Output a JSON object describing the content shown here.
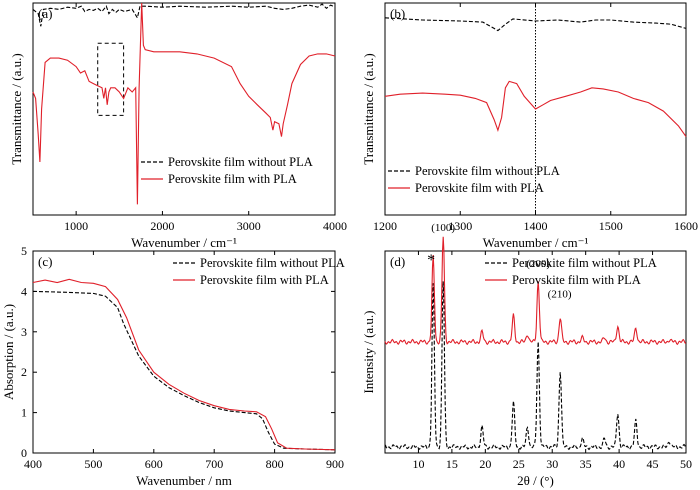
{
  "chart_data": [
    {
      "panel": "(a)",
      "type": "line",
      "xlabel": "Wavenumber / cm⁻¹",
      "ylabel": "Transmittance / (a.u.)",
      "xlim": [
        500,
        4000
      ],
      "ylim": [
        0,
        1
      ],
      "xticks": [
        "1000",
        "2000",
        "3000",
        "4000"
      ],
      "yticks": [],
      "legend_position": "bottom-right",
      "annotation": "dashed-box 1250–1550",
      "series": [
        {
          "name": "Perovskite film without PLA",
          "style": "dashed",
          "color": "#000000",
          "points": [
            [
              500,
              0.97
            ],
            [
              560,
              0.95
            ],
            [
              590,
              0.89
            ],
            [
              620,
              0.97
            ],
            [
              700,
              0.975
            ],
            [
              800,
              0.97
            ],
            [
              900,
              0.98
            ],
            [
              1000,
              0.975
            ],
            [
              1060,
              0.985
            ],
            [
              1100,
              0.96
            ],
            [
              1150,
              0.97
            ],
            [
              1200,
              0.965
            ],
            [
              1250,
              0.975
            ],
            [
              1300,
              0.96
            ],
            [
              1350,
              0.985
            ],
            [
              1380,
              0.95
            ],
            [
              1420,
              0.97
            ],
            [
              1460,
              0.955
            ],
            [
              1500,
              0.97
            ],
            [
              1560,
              0.96
            ],
            [
              1650,
              0.97
            ],
            [
              1710,
              0.93
            ],
            [
              1740,
              0.985
            ],
            [
              1800,
              0.985
            ],
            [
              2000,
              0.98
            ],
            [
              2200,
              0.985
            ],
            [
              2500,
              0.98
            ],
            [
              2800,
              0.985
            ],
            [
              3000,
              0.98
            ],
            [
              3200,
              0.985
            ],
            [
              3300,
              0.975
            ],
            [
              3400,
              0.97
            ],
            [
              3500,
              0.975
            ],
            [
              3600,
              0.985
            ],
            [
              3700,
              0.99
            ],
            [
              3800,
              0.98
            ],
            [
              3850,
              0.995
            ],
            [
              3900,
              0.975
            ],
            [
              3950,
              0.99
            ],
            [
              4000,
              0.98
            ]
          ]
        },
        {
          "name": "Perovskite film with PLA",
          "style": "solid",
          "color": "#e0202a",
          "points": [
            [
              500,
              0.58
            ],
            [
              530,
              0.55
            ],
            [
              560,
              0.38
            ],
            [
              580,
              0.25
            ],
            [
              600,
              0.5
            ],
            [
              640,
              0.72
            ],
            [
              700,
              0.74
            ],
            [
              800,
              0.74
            ],
            [
              900,
              0.73
            ],
            [
              1000,
              0.7
            ],
            [
              1050,
              0.67
            ],
            [
              1100,
              0.68
            ],
            [
              1150,
              0.63
            ],
            [
              1200,
              0.62
            ],
            [
              1250,
              0.61
            ],
            [
              1300,
              0.6
            ],
            [
              1320,
              0.55
            ],
            [
              1340,
              0.6
            ],
            [
              1360,
              0.52
            ],
            [
              1380,
              0.58
            ],
            [
              1400,
              0.6
            ],
            [
              1450,
              0.6
            ],
            [
              1500,
              0.58
            ],
            [
              1550,
              0.55
            ],
            [
              1600,
              0.6
            ],
            [
              1650,
              0.58
            ],
            [
              1690,
              0.6
            ],
            [
              1710,
              0.05
            ],
            [
              1730,
              0.6
            ],
            [
              1760,
              1.0
            ],
            [
              1780,
              0.8
            ],
            [
              1800,
              0.78
            ],
            [
              1900,
              0.77
            ],
            [
              2000,
              0.77
            ],
            [
              2200,
              0.77
            ],
            [
              2400,
              0.76
            ],
            [
              2600,
              0.74
            ],
            [
              2800,
              0.7
            ],
            [
              2900,
              0.62
            ],
            [
              3000,
              0.56
            ],
            [
              3100,
              0.52
            ],
            [
              3200,
              0.48
            ],
            [
              3250,
              0.46
            ],
            [
              3280,
              0.4
            ],
            [
              3300,
              0.44
            ],
            [
              3350,
              0.43
            ],
            [
              3380,
              0.37
            ],
            [
              3400,
              0.43
            ],
            [
              3450,
              0.52
            ],
            [
              3500,
              0.62
            ],
            [
              3600,
              0.71
            ],
            [
              3700,
              0.75
            ],
            [
              3800,
              0.76
            ],
            [
              3900,
              0.76
            ],
            [
              4000,
              0.75
            ]
          ]
        }
      ]
    },
    {
      "panel": "(b)",
      "type": "line",
      "xlabel": "Wavenumber / cm⁻¹",
      "ylabel": "Transmittance / (a.u.)",
      "xlim": [
        1200,
        1600
      ],
      "ylim": [
        0,
        1
      ],
      "xticks": [
        "1200",
        "1300",
        "1400",
        "1500",
        "1600"
      ],
      "yticks": [],
      "legend_position": "bottom-left",
      "vline_x": 1400,
      "series": [
        {
          "name": "Perovskite film without PLA",
          "style": "dashed",
          "color": "#000000",
          "points": [
            [
              1200,
              0.93
            ],
            [
              1250,
              0.92
            ],
            [
              1300,
              0.915
            ],
            [
              1330,
              0.91
            ],
            [
              1345,
              0.88
            ],
            [
              1350,
              0.87
            ],
            [
              1360,
              0.9
            ],
            [
              1370,
              0.925
            ],
            [
              1400,
              0.915
            ],
            [
              1430,
              0.92
            ],
            [
              1460,
              0.91
            ],
            [
              1480,
              0.92
            ],
            [
              1500,
              0.92
            ],
            [
              1530,
              0.91
            ],
            [
              1560,
              0.905
            ],
            [
              1580,
              0.9
            ],
            [
              1600,
              0.88
            ]
          ]
        },
        {
          "name": "Perovskite film with PLA",
          "style": "solid",
          "color": "#e0202a",
          "points": [
            [
              1200,
              0.56
            ],
            [
              1220,
              0.57
            ],
            [
              1250,
              0.575
            ],
            [
              1280,
              0.57
            ],
            [
              1300,
              0.565
            ],
            [
              1320,
              0.55
            ],
            [
              1335,
              0.53
            ],
            [
              1345,
              0.45
            ],
            [
              1350,
              0.4
            ],
            [
              1355,
              0.46
            ],
            [
              1360,
              0.6
            ],
            [
              1365,
              0.63
            ],
            [
              1375,
              0.62
            ],
            [
              1385,
              0.56
            ],
            [
              1395,
              0.52
            ],
            [
              1400,
              0.5
            ],
            [
              1410,
              0.52
            ],
            [
              1420,
              0.54
            ],
            [
              1440,
              0.56
            ],
            [
              1460,
              0.58
            ],
            [
              1475,
              0.6
            ],
            [
              1490,
              0.595
            ],
            [
              1510,
              0.58
            ],
            [
              1530,
              0.55
            ],
            [
              1550,
              0.53
            ],
            [
              1570,
              0.49
            ],
            [
              1590,
              0.42
            ],
            [
              1600,
              0.37
            ]
          ]
        }
      ]
    },
    {
      "panel": "(c)",
      "type": "line",
      "xlabel": "Wavenumber / nm",
      "ylabel": "Absorption / (a.u.)",
      "xlim": [
        400,
        900
      ],
      "ylim": [
        0,
        5
      ],
      "xticks": [
        "400",
        "500",
        "600",
        "700",
        "800",
        "900"
      ],
      "yticks": [
        "0",
        "1",
        "2",
        "3",
        "4",
        "5"
      ],
      "legend_position": "top-right",
      "series": [
        {
          "name": "Perovskite film without PLA",
          "style": "dashed",
          "color": "#000000",
          "points": [
            [
              400,
              4.0
            ],
            [
              450,
              3.98
            ],
            [
              500,
              3.95
            ],
            [
              520,
              3.88
            ],
            [
              540,
              3.6
            ],
            [
              550,
              3.2
            ],
            [
              575,
              2.4
            ],
            [
              600,
              1.9
            ],
            [
              625,
              1.62
            ],
            [
              650,
              1.42
            ],
            [
              675,
              1.25
            ],
            [
              700,
              1.12
            ],
            [
              725,
              1.04
            ],
            [
              750,
              1.0
            ],
            [
              770,
              0.97
            ],
            [
              780,
              0.85
            ],
            [
              790,
              0.5
            ],
            [
              800,
              0.22
            ],
            [
              815,
              0.12
            ],
            [
              850,
              0.1
            ],
            [
              900,
              0.08
            ]
          ]
        },
        {
          "name": "Perovskite film with PLA",
          "style": "solid",
          "color": "#e0202a",
          "points": [
            [
              400,
              4.22
            ],
            [
              420,
              4.28
            ],
            [
              440,
              4.22
            ],
            [
              460,
              4.3
            ],
            [
              480,
              4.22
            ],
            [
              500,
              4.2
            ],
            [
              520,
              4.12
            ],
            [
              540,
              3.8
            ],
            [
              555,
              3.35
            ],
            [
              575,
              2.55
            ],
            [
              600,
              2.0
            ],
            [
              625,
              1.7
            ],
            [
              650,
              1.48
            ],
            [
              675,
              1.3
            ],
            [
              700,
              1.17
            ],
            [
              725,
              1.08
            ],
            [
              750,
              1.04
            ],
            [
              770,
              1.02
            ],
            [
              785,
              0.9
            ],
            [
              795,
              0.6
            ],
            [
              805,
              0.25
            ],
            [
              820,
              0.12
            ],
            [
              850,
              0.1
            ],
            [
              900,
              0.08
            ]
          ]
        }
      ]
    },
    {
      "panel": "(d)",
      "type": "line",
      "xlabel": "2θ / (°)",
      "ylabel": "Intensity / (a.u.)",
      "xlim": [
        5,
        50
      ],
      "ylim": [
        0,
        1
      ],
      "xticks": [
        "10",
        "15",
        "20",
        "25",
        "30",
        "35",
        "40",
        "45",
        "50"
      ],
      "yticks": [],
      "legend_position": "top-right",
      "peak_labels": [
        {
          "text": "*",
          "x": 12.2
        },
        {
          "text": "(100)",
          "x": 13.7
        },
        {
          "text": "(200)",
          "x": 27.9
        },
        {
          "text": "(210)",
          "x": 31.1
        }
      ],
      "series": [
        {
          "name": "Perovskite film without PLA",
          "style": "dashed",
          "color": "#000000",
          "offset": 0,
          "peaks": [
            [
              12.2,
              0.8
            ],
            [
              13.7,
              0.82
            ],
            [
              19.5,
              0.1
            ],
            [
              24.2,
              0.22
            ],
            [
              26.3,
              0.1
            ],
            [
              27.9,
              0.52
            ],
            [
              31.2,
              0.38
            ],
            [
              34.5,
              0.04
            ],
            [
              37.8,
              0.04
            ],
            [
              39.8,
              0.17
            ],
            [
              42.5,
              0.13
            ],
            [
              47.5,
              0.03
            ]
          ]
        },
        {
          "name": "Perovskite film with PLA",
          "style": "solid",
          "color": "#e0202a",
          "offset": 0.52,
          "peaks": [
            [
              12.2,
              0.42
            ],
            [
              13.7,
              0.52
            ],
            [
              19.5,
              0.05
            ],
            [
              24.2,
              0.13
            ],
            [
              26.3,
              0.04
            ],
            [
              27.9,
              0.3
            ],
            [
              31.2,
              0.12
            ],
            [
              34.5,
              0.02
            ],
            [
              37.8,
              0.02
            ],
            [
              39.8,
              0.08
            ],
            [
              42.5,
              0.07
            ],
            [
              47.5,
              0.01
            ]
          ]
        }
      ]
    }
  ]
}
